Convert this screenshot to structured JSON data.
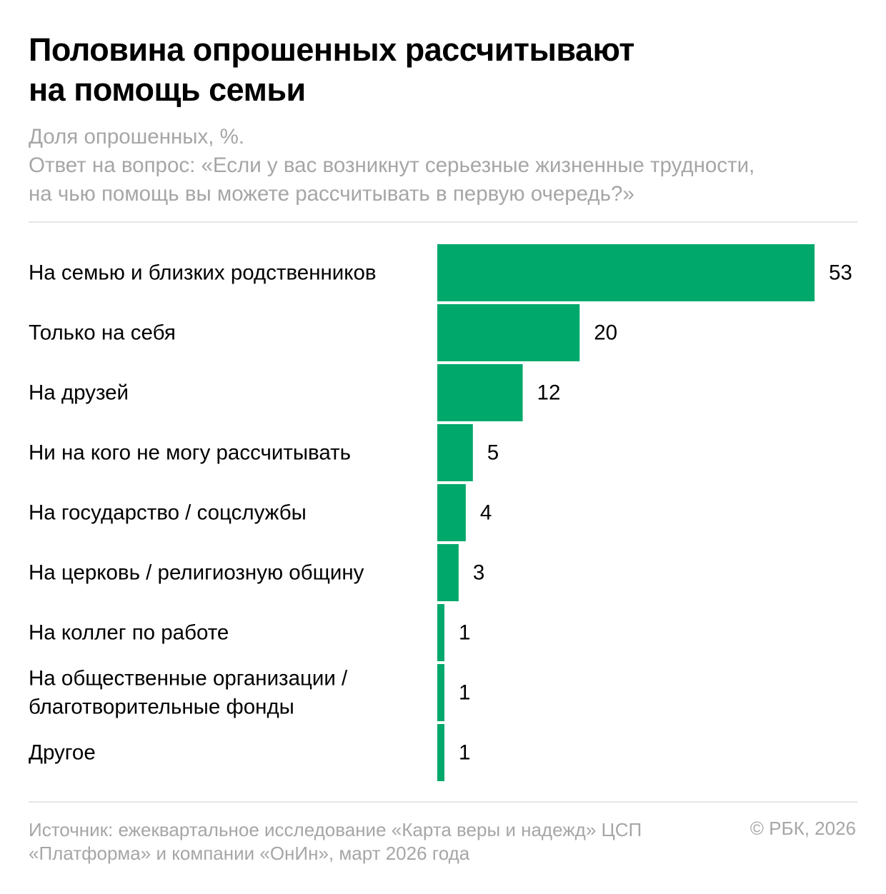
{
  "header": {
    "title_lines": [
      "Половина опрошенных рассчитывают",
      "на помощь семьи"
    ],
    "subtitle_lines": [
      "Доля опрошенных, %.",
      "Ответ на вопрос: «Если у вас возникнут серьезные жизненные трудности,",
      "на чью помощь вы можете рассчитывать в первую очередь?»"
    ]
  },
  "footer": {
    "source_lines": [
      "Источник: ежеквартальное исследование «Карта веры и надежд» ЦСП",
      "«Платформа» и компании «ОнИн», март 2026 года"
    ],
    "copyright": "© РБК, 2026"
  },
  "colors": {
    "bar": "#00a86b",
    "text": "#000000",
    "muted": "#a6a6a6",
    "rule": "#e6e6e6"
  },
  "chart_data": {
    "type": "bar",
    "orientation": "horizontal",
    "title": "Половина опрошенных рассчитывают на помощь семьи",
    "xlabel": "",
    "ylabel": "",
    "unit": "%",
    "xlim": [
      0,
      53
    ],
    "grid": false,
    "categories": [
      [
        "На семью и близких родственников"
      ],
      [
        "Только на себя"
      ],
      [
        "На друзей"
      ],
      [
        "Ни на кого не могу рассчитывать"
      ],
      [
        "На государство / соцслужбы"
      ],
      [
        "На церковь / религиозную общину"
      ],
      [
        "На коллег по работе"
      ],
      [
        "На общественные организации /",
        "благотворительные фонды"
      ],
      [
        "Другое"
      ]
    ],
    "values": [
      53,
      20,
      12,
      5,
      4,
      3,
      1,
      1,
      1
    ],
    "value_labels": [
      "53",
      "20",
      "12",
      "5",
      "4",
      "3",
      "1",
      "1",
      "1"
    ]
  }
}
